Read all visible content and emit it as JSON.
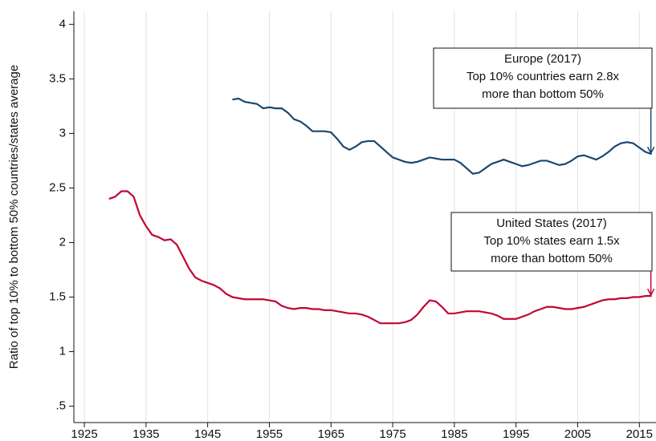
{
  "chart_data": {
    "type": "line",
    "y_label": "Ratio of top 10% to bottom 50% countries/states average",
    "x": [
      1929,
      1930,
      1931,
      1932,
      1933,
      1934,
      1935,
      1936,
      1937,
      1938,
      1939,
      1940,
      1941,
      1942,
      1943,
      1944,
      1945,
      1946,
      1947,
      1948,
      1949,
      1950,
      1951,
      1952,
      1953,
      1954,
      1955,
      1956,
      1957,
      1958,
      1959,
      1960,
      1961,
      1962,
      1963,
      1964,
      1965,
      1966,
      1967,
      1968,
      1969,
      1970,
      1971,
      1972,
      1973,
      1974,
      1975,
      1976,
      1977,
      1978,
      1979,
      1980,
      1981,
      1982,
      1983,
      1984,
      1985,
      1986,
      1987,
      1988,
      1989,
      1990,
      1991,
      1992,
      1993,
      1994,
      1995,
      1996,
      1997,
      1998,
      1999,
      2000,
      2001,
      2002,
      2003,
      2004,
      2005,
      2006,
      2007,
      2008,
      2009,
      2010,
      2011,
      2012,
      2013,
      2014,
      2015,
      2016,
      2017
    ],
    "series": [
      {
        "name": "Europe",
        "color": "#1a476f",
        "values": [
          null,
          null,
          null,
          null,
          null,
          null,
          null,
          null,
          null,
          null,
          null,
          null,
          null,
          null,
          null,
          null,
          null,
          null,
          null,
          null,
          3.31,
          3.32,
          3.29,
          3.28,
          3.27,
          3.23,
          3.24,
          3.23,
          3.23,
          3.19,
          3.13,
          3.11,
          3.07,
          3.02,
          3.02,
          3.02,
          3.01,
          2.95,
          2.88,
          2.85,
          2.88,
          2.92,
          2.93,
          2.93,
          2.88,
          2.83,
          2.78,
          2.76,
          2.74,
          2.73,
          2.74,
          2.76,
          2.78,
          2.77,
          2.76,
          2.76,
          2.76,
          2.73,
          2.68,
          2.63,
          2.64,
          2.68,
          2.72,
          2.74,
          2.76,
          2.74,
          2.72,
          2.7,
          2.71,
          2.73,
          2.75,
          2.75,
          2.73,
          2.71,
          2.72,
          2.75,
          2.79,
          2.8,
          2.78,
          2.76,
          2.79,
          2.83,
          2.88,
          2.91,
          2.92,
          2.91,
          2.87,
          2.83,
          2.81
        ]
      },
      {
        "name": "United States",
        "color": "#c10534",
        "values": [
          2.4,
          2.42,
          2.47,
          2.47,
          2.42,
          2.25,
          2.15,
          2.07,
          2.05,
          2.02,
          2.03,
          1.98,
          1.87,
          1.76,
          1.68,
          1.65,
          1.63,
          1.61,
          1.58,
          1.53,
          1.5,
          1.49,
          1.48,
          1.48,
          1.48,
          1.48,
          1.47,
          1.46,
          1.42,
          1.4,
          1.39,
          1.4,
          1.4,
          1.39,
          1.39,
          1.38,
          1.38,
          1.37,
          1.36,
          1.35,
          1.35,
          1.34,
          1.32,
          1.29,
          1.26,
          1.26,
          1.26,
          1.26,
          1.27,
          1.29,
          1.34,
          1.41,
          1.47,
          1.46,
          1.41,
          1.35,
          1.35,
          1.36,
          1.37,
          1.37,
          1.37,
          1.36,
          1.35,
          1.33,
          1.3,
          1.3,
          1.3,
          1.32,
          1.34,
          1.37,
          1.39,
          1.41,
          1.41,
          1.4,
          1.39,
          1.39,
          1.4,
          1.41,
          1.43,
          1.45,
          1.47,
          1.48,
          1.48,
          1.49,
          1.49,
          1.5,
          1.5,
          1.51,
          1.51
        ]
      }
    ],
    "annotations": [
      [
        "Europe (2017)",
        "Top 10% countries earn 2.8x",
        "more than bottom 50%"
      ],
      [
        "United States (2017)",
        "Top 10% states earn 1.5x",
        "more than bottom 50%"
      ]
    ],
    "xlim": [
      1923.3,
      2017.7
    ],
    "xticks": [
      1925,
      1935,
      1945,
      1955,
      1965,
      1975,
      1985,
      1995,
      2005,
      2015
    ],
    "ylim": [
      0.35,
      4.12
    ],
    "yticks": [
      {
        "value": 0.5,
        "label": ".5"
      },
      1,
      1.5,
      2,
      2.5,
      3,
      3.5,
      4
    ],
    "grid": "x"
  }
}
